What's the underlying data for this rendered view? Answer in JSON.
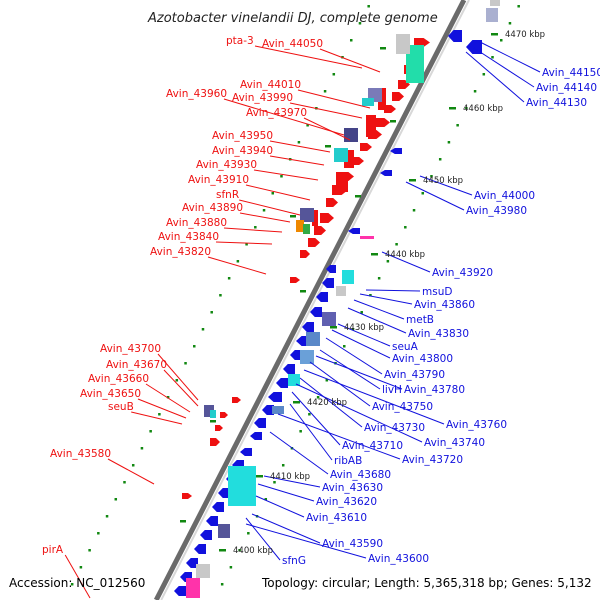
{
  "title": "Azotobacter vinelandii DJ, complete genome",
  "footer": {
    "accession": "Accession: NC_012560",
    "topology": "Topology: circular; Length: 5,365,318 bp; Genes: 5,132"
  },
  "colors": {
    "forward": "#ee1111",
    "reverse": "#1111dd",
    "backbone": "#555555",
    "tick": "#118811"
  },
  "kbp_ticks": [
    "4470 kbp",
    "4460 kbp",
    "4450 kbp",
    "4440 kbp",
    "4430 kbp",
    "4420 kbp",
    "4410 kbp",
    "4400 kbp"
  ],
  "left_labels": [
    "pta-3",
    "Avin_44050",
    "Avin_44010",
    "Avin_43960",
    "Avin_43990",
    "Avin_43970",
    "Avin_43950",
    "Avin_43940",
    "Avin_43930",
    "Avin_43910",
    "sfnR",
    "Avin_43890",
    "Avin_43880",
    "Avin_43840",
    "Avin_43820",
    "Avin_43700",
    "Avin_43670",
    "Avin_43660",
    "Avin_43650",
    "seuB",
    "Avin_43580",
    "pirA"
  ],
  "right_labels": [
    "Avin_44150",
    "Avin_44140",
    "Avin_44130",
    "Avin_44000",
    "Avin_43980",
    "Avin_43920",
    "msuD",
    "Avin_43860",
    "metB",
    "Avin_43830",
    "seuA",
    "Avin_43800",
    "Avin_43790",
    "livH",
    "Avin_43780",
    "Avin_43750",
    "Avin_43760",
    "Avin_43730",
    "Avin_43740",
    "Avin_43710",
    "ribAB",
    "Avin_43720",
    "Avin_43680",
    "Avin_43630",
    "Avin_43620",
    "Avin_43610",
    "Avin_43590",
    "sfnG",
    "Avin_43600"
  ]
}
